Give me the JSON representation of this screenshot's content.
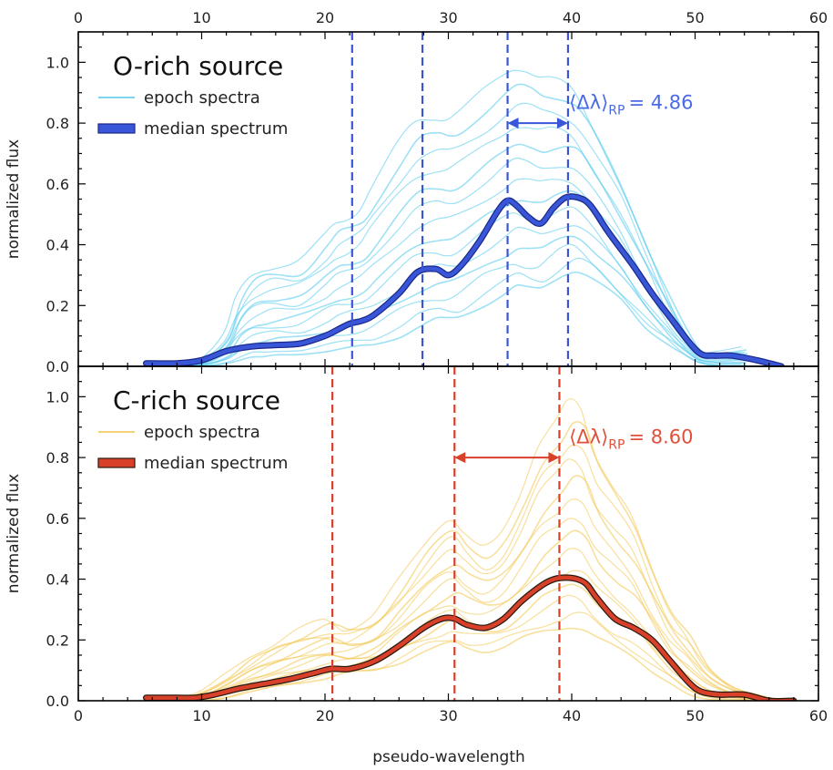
{
  "figure": {
    "xlabel": "pseudo-wavelength"
  },
  "chart_data": [
    {
      "type": "line",
      "title": "O-rich source",
      "xlabel": "pseudo-wavelength",
      "ylabel": "normalized flux",
      "xlim": [
        0,
        60
      ],
      "ylim": [
        0,
        1.1
      ],
      "xticks": [
        0,
        10,
        20,
        30,
        40,
        50,
        60
      ],
      "yticks": [
        0.0,
        0.2,
        0.4,
        0.6,
        0.8,
        1.0
      ],
      "ytick_labels": [
        "0.0",
        "0.2",
        "0.4",
        "0.6",
        "0.8",
        "1.0"
      ],
      "legend": {
        "position": "top-left",
        "entries": [
          "epoch spectra",
          "median spectrum"
        ]
      },
      "colors": {
        "epoch": "#4fc8ec",
        "median": "#3a56d8",
        "median_edge": "#1a2a8a",
        "vlines": "#3a56d8",
        "annotation": "#4a6ae8"
      },
      "median": {
        "name": "median spectrum",
        "x": [
          5.5,
          8,
          10,
          12,
          14,
          16,
          18,
          20,
          21,
          22,
          23,
          24,
          26,
          27.5,
          29,
          30,
          31,
          32.5,
          34,
          34.8,
          35.5,
          36.5,
          37.5,
          38.5,
          39.5,
          40.5,
          41.5,
          43,
          45,
          46.5,
          48,
          49.5,
          50.5,
          51.5,
          53,
          55,
          57
        ],
        "y": [
          0.01,
          0.01,
          0.02,
          0.05,
          0.065,
          0.07,
          0.075,
          0.1,
          0.12,
          0.14,
          0.15,
          0.17,
          0.24,
          0.31,
          0.32,
          0.3,
          0.33,
          0.41,
          0.51,
          0.545,
          0.53,
          0.49,
          0.47,
          0.52,
          0.555,
          0.555,
          0.53,
          0.44,
          0.33,
          0.24,
          0.16,
          0.08,
          0.04,
          0.035,
          0.035,
          0.02,
          0.0
        ]
      },
      "epochs": {
        "name": "epoch spectra",
        "x": [
          6,
          8,
          10,
          12,
          13,
          14,
          15,
          16,
          18,
          20,
          21,
          22,
          23,
          24,
          26,
          27.5,
          29,
          30,
          31,
          33,
          34.5,
          35.5,
          36.5,
          37.5,
          38.5,
          39.5,
          40.5,
          42,
          44,
          46,
          48,
          49.5,
          50.5,
          52,
          54
        ],
        "y_high": [
          0.0,
          0.0,
          0.02,
          0.1,
          0.22,
          0.29,
          0.32,
          0.33,
          0.34,
          0.42,
          0.47,
          0.49,
          0.52,
          0.59,
          0.72,
          0.8,
          0.82,
          0.82,
          0.84,
          0.9,
          0.95,
          0.98,
          0.98,
          0.96,
          0.95,
          0.93,
          0.89,
          0.78,
          0.62,
          0.42,
          0.22,
          0.1,
          0.05,
          0.05,
          0.06
        ],
        "y_low": [
          0.0,
          0.0,
          0.0,
          0.01,
          0.02,
          0.03,
          0.03,
          0.035,
          0.04,
          0.05,
          0.055,
          0.06,
          0.065,
          0.07,
          0.1,
          0.13,
          0.15,
          0.15,
          0.16,
          0.21,
          0.24,
          0.26,
          0.25,
          0.25,
          0.28,
          0.31,
          0.32,
          0.28,
          0.21,
          0.13,
          0.07,
          0.03,
          0.01,
          0.0,
          0.0
        ],
        "count": 14
      },
      "vlines": [
        22.2,
        27.9,
        34.8,
        39.7
      ],
      "annotation": {
        "text": "⟨Δλ⟩",
        "sub": "RP",
        "value": "= 4.86",
        "arrow_from": 34.8,
        "arrow_to": 39.7,
        "arrow_y": 0.8,
        "text_x": 42,
        "text_y": 0.87
      }
    },
    {
      "type": "line",
      "title": "C-rich source",
      "xlabel": "pseudo-wavelength",
      "ylabel": "normalized flux",
      "xlim": [
        0,
        60
      ],
      "ylim": [
        0,
        1.1
      ],
      "xticks": [
        0,
        10,
        20,
        30,
        40,
        50,
        60
      ],
      "yticks": [
        0.0,
        0.2,
        0.4,
        0.6,
        0.8,
        1.0
      ],
      "ytick_labels": [
        "0.0",
        "0.2",
        "0.4",
        "0.6",
        "0.8",
        "1.0"
      ],
      "legend": {
        "position": "top-left",
        "entries": [
          "epoch spectra",
          "median spectrum"
        ]
      },
      "colors": {
        "epoch": "#f2c44a",
        "median": "#d8402a",
        "median_edge": "#2a1a10",
        "vlines": "#d8402a",
        "annotation": "#e0503a"
      },
      "median": {
        "name": "median spectrum",
        "x": [
          5.5,
          8,
          9.5,
          11,
          13,
          15,
          17,
          19,
          20.5,
          22,
          24,
          26,
          28,
          29.5,
          30.5,
          31.5,
          33,
          34.5,
          36,
          38,
          39.5,
          41,
          42,
          43.5,
          45,
          46.5,
          48,
          49.5,
          50.5,
          52,
          54,
          56,
          58
        ],
        "y": [
          0.01,
          0.01,
          0.01,
          0.02,
          0.04,
          0.055,
          0.07,
          0.09,
          0.105,
          0.105,
          0.13,
          0.18,
          0.24,
          0.27,
          0.27,
          0.25,
          0.24,
          0.27,
          0.33,
          0.39,
          0.405,
          0.39,
          0.34,
          0.27,
          0.24,
          0.2,
          0.13,
          0.06,
          0.03,
          0.02,
          0.02,
          0.0,
          0.0
        ]
      },
      "epochs": {
        "name": "epoch spectra",
        "x": [
          5.5,
          8,
          10,
          12,
          14,
          16,
          18,
          20,
          21,
          22,
          24,
          26,
          28,
          29.5,
          30.5,
          31.5,
          33,
          34.5,
          36,
          37.5,
          39,
          40,
          41,
          42,
          43.5,
          45,
          46.5,
          48,
          49.5,
          51,
          53,
          55,
          57,
          58
        ],
        "y_high": [
          0.0,
          0.01,
          0.03,
          0.08,
          0.14,
          0.19,
          0.23,
          0.26,
          0.25,
          0.24,
          0.28,
          0.38,
          0.5,
          0.58,
          0.6,
          0.55,
          0.5,
          0.55,
          0.68,
          0.84,
          0.92,
          0.98,
          0.95,
          0.82,
          0.72,
          0.62,
          0.45,
          0.3,
          0.22,
          0.12,
          0.05,
          0.02,
          0.0,
          0.0
        ],
        "y_low": [
          0.0,
          0.0,
          0.0,
          0.01,
          0.03,
          0.045,
          0.06,
          0.075,
          0.085,
          0.09,
          0.1,
          0.13,
          0.16,
          0.175,
          0.185,
          0.175,
          0.17,
          0.18,
          0.2,
          0.22,
          0.24,
          0.25,
          0.24,
          0.21,
          0.17,
          0.14,
          0.1,
          0.06,
          0.02,
          0.005,
          0.0,
          0.0,
          0.0,
          0.0
        ],
        "count": 14
      },
      "vlines": [
        20.6,
        30.5,
        39.0
      ],
      "annotation": {
        "text": "⟨Δλ⟩",
        "sub": "RP",
        "value": "= 8.60",
        "arrow_from": 30.5,
        "arrow_to": 39.0,
        "arrow_y": 0.8,
        "text_x": 42,
        "text_y": 0.87
      }
    }
  ]
}
